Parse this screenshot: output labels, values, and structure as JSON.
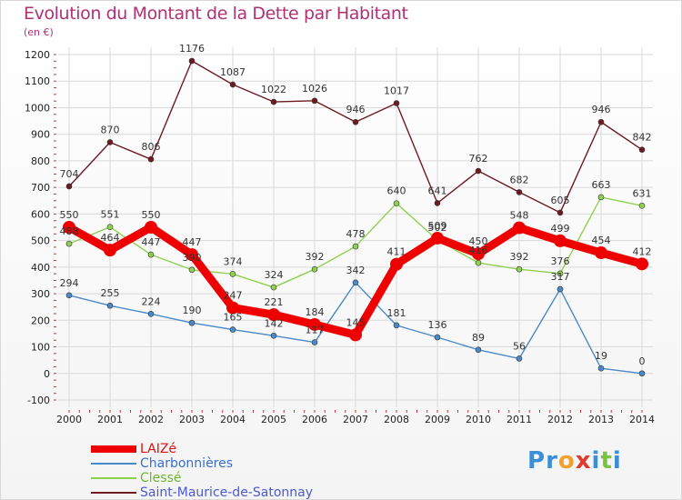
{
  "title": "Evolution du Montant de la Dette par Habitant",
  "subtitle": "(en €)",
  "logo": {
    "text": "Proxiti",
    "letters": [
      {
        "ch": "P",
        "color": "#3b8fd6"
      },
      {
        "ch": "r",
        "color": "#3b8fd6"
      },
      {
        "ch": "o",
        "color": "#f3a12c"
      },
      {
        "ch": "x",
        "color": "#e03a2f"
      },
      {
        "ch": "i",
        "color": "#3b8fd6"
      },
      {
        "ch": "t",
        "color": "#7cc241"
      },
      {
        "ch": "i",
        "color": "#3b8fd6"
      }
    ]
  },
  "chart_data": {
    "type": "line",
    "title": "Evolution du Montant de la Dette par Habitant",
    "subtitle": "(en €)",
    "categories": [
      "2000",
      "2001",
      "2002",
      "2003",
      "2004",
      "2005",
      "2006",
      "2007",
      "2008",
      "2009",
      "2010",
      "2011",
      "2012",
      "2013",
      "2014"
    ],
    "ylim": [
      -100,
      1200
    ],
    "yticks": [
      -100,
      0,
      100,
      200,
      300,
      400,
      500,
      600,
      700,
      800,
      900,
      1000,
      1100,
      1200
    ],
    "grid": true,
    "legend_position": "bottom-left",
    "series": [
      {
        "name": "Saint-Maurice-de-Satonnay",
        "color": "#6e1a22",
        "values": [
          704,
          870,
          806,
          1176,
          1087,
          1022,
          1026,
          946,
          1017,
          641,
          762,
          682,
          605,
          946,
          842
        ],
        "labels": [
          "704",
          "870",
          "806",
          "1176",
          "1087",
          "1022",
          "1026",
          "946",
          "1017",
          "641",
          "762",
          "682",
          "605",
          "946",
          "842"
        ]
      },
      {
        "name": "Clessé",
        "color": "#8fd14f",
        "values": [
          488,
          551,
          447,
          390,
          374,
          324,
          392,
          478,
          640,
          502,
          416,
          392,
          376,
          663,
          631
        ],
        "labels": [
          "488",
          "551",
          "447",
          "390",
          "374",
          "324",
          "392",
          "478",
          "640",
          "502",
          "416",
          "392",
          "376",
          "663",
          "631"
        ]
      },
      {
        "name": "Charbonnières",
        "color": "#4a8ac9",
        "values": [
          294,
          255,
          224,
          190,
          165,
          142,
          117,
          342,
          181,
          136,
          89,
          56,
          317,
          19,
          0
        ],
        "labels": [
          "294",
          "255",
          "224",
          "190",
          "165",
          "142",
          "117",
          "342",
          "181",
          "136",
          "89",
          "56",
          "317",
          "19",
          "0"
        ]
      },
      {
        "name": "LAIZé",
        "color": "#ee0000",
        "values": [
          550,
          464,
          550,
          447,
          247,
          221,
          184,
          145,
          411,
          509,
          450,
          548,
          499,
          454,
          412
        ],
        "labels": [
          "550",
          "464",
          "550",
          "447",
          "247",
          "221",
          "184",
          "145",
          "411",
          "509",
          "450",
          "548",
          "499",
          "454",
          "412"
        ]
      }
    ]
  }
}
